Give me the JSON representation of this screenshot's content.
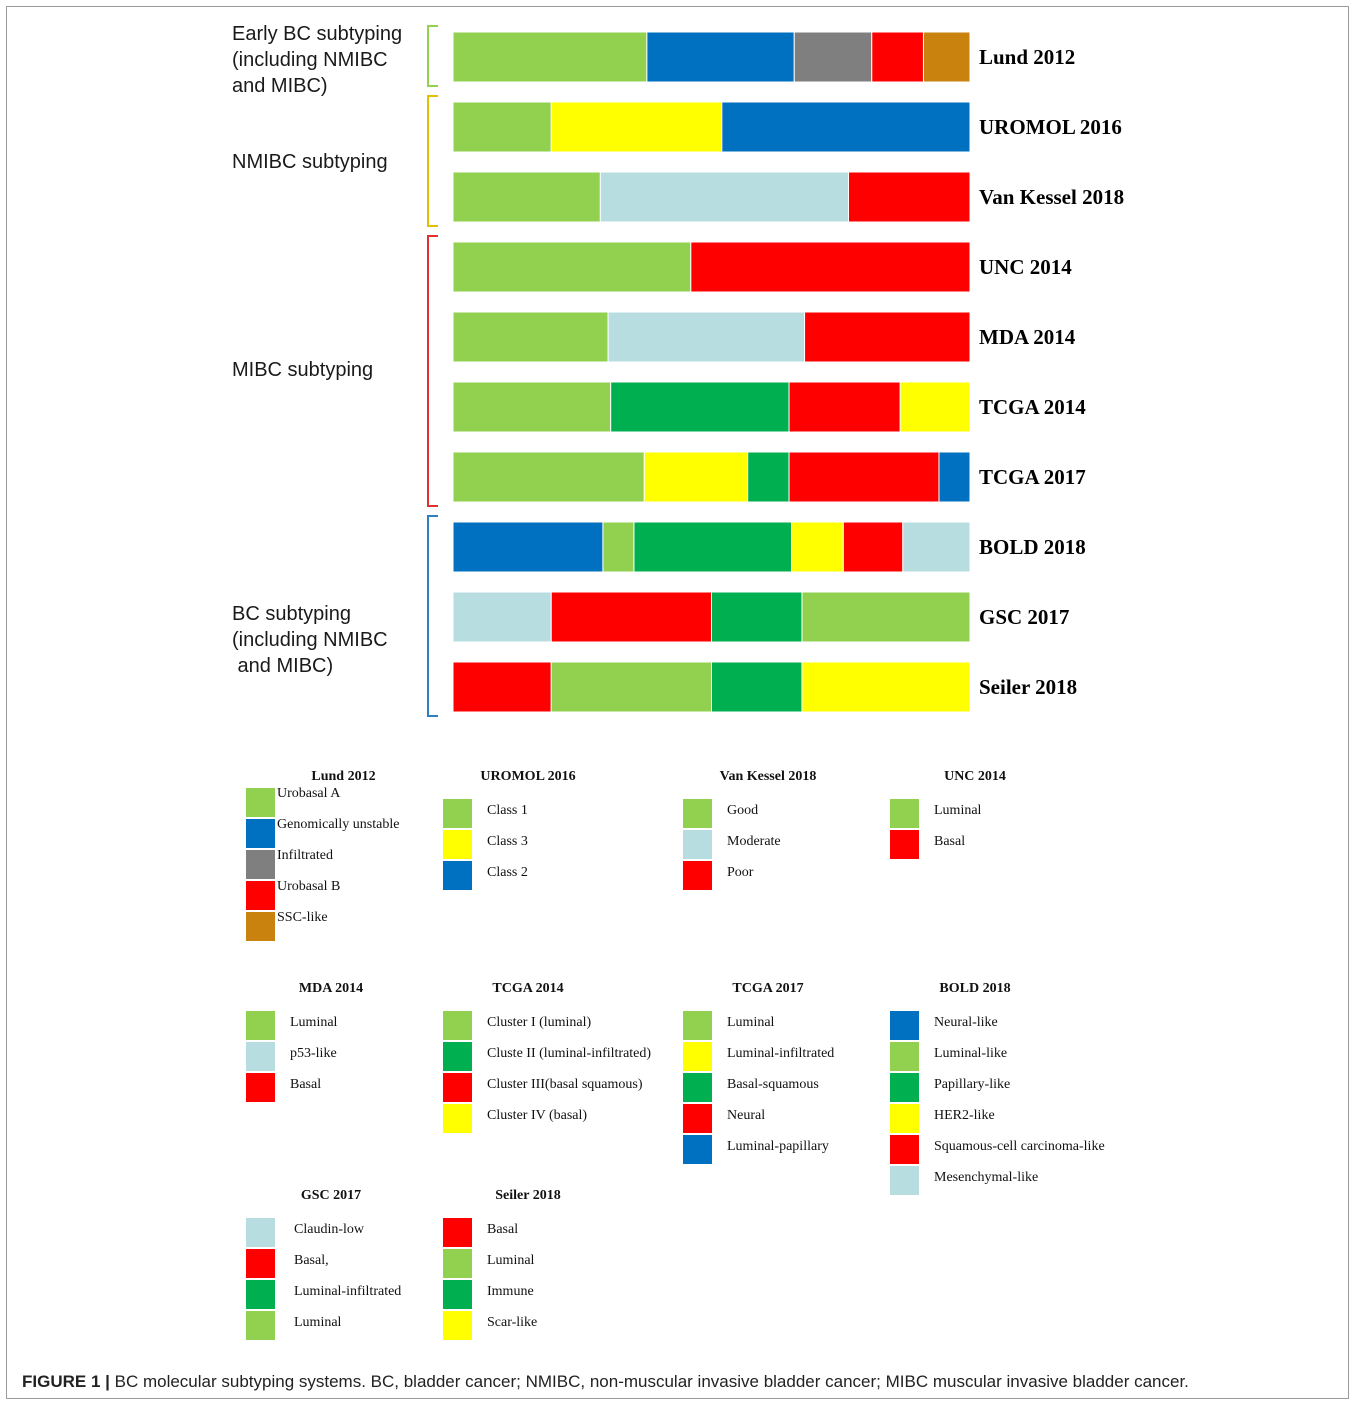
{
  "colors": {
    "light_green": "#92d050",
    "blue": "#0070c0",
    "gray": "#7f7f7f",
    "red": "#ff0000",
    "orange": "#c9820e",
    "yellow": "#ffff00",
    "light_blue": "#b7dde0",
    "dark_green": "#00b050",
    "green_bracket": "#92d050",
    "yellow_bracket": "#e0c000",
    "red_bracket": "#e03030",
    "blue_bracket": "#2e7fc0"
  },
  "groups": [
    {
      "label": "Early BC subtyping\n(including NMIBC\nand MIBC)",
      "bracket_color": "green_bracket"
    },
    {
      "label": "NMIBC subtyping",
      "bracket_color": "yellow_bracket"
    },
    {
      "label": "MIBC subtyping",
      "bracket_color": "red_bracket"
    },
    {
      "label": "BC subtyping\n(including NMIBC\n and MIBC)",
      "bracket_color": "blue_bracket"
    }
  ],
  "chart_data": {
    "type": "bar",
    "orientation": "horizontal-stacked",
    "unit": "proportion",
    "bars": [
      {
        "name": "Lund 2012",
        "group": 0,
        "segments": [
          {
            "subtype": "Urobasal A",
            "color": "light_green",
            "value": 0.375
          },
          {
            "subtype": "Genomically unstable",
            "color": "blue",
            "value": 0.285
          },
          {
            "subtype": "Infiltrated",
            "color": "gray",
            "value": 0.15
          },
          {
            "subtype": "Urobasal B",
            "color": "red",
            "value": 0.1
          },
          {
            "subtype": "SSC-like",
            "color": "orange",
            "value": 0.09
          }
        ]
      },
      {
        "name": "UROMOL 2016",
        "group": 1,
        "segments": [
          {
            "subtype": "Class 1",
            "color": "light_green",
            "value": 0.19
          },
          {
            "subtype": "Class 3",
            "color": "yellow",
            "value": 0.33
          },
          {
            "subtype": "Class 2",
            "color": "blue",
            "value": 0.48
          }
        ]
      },
      {
        "name": "Van Kessel 2018",
        "group": 1,
        "segments": [
          {
            "subtype": "Good",
            "color": "light_green",
            "value": 0.285
          },
          {
            "subtype": "Moderate",
            "color": "light_blue",
            "value": 0.48
          },
          {
            "subtype": "Poor",
            "color": "red",
            "value": 0.235
          }
        ]
      },
      {
        "name": "UNC 2014",
        "group": 2,
        "segments": [
          {
            "subtype": "Luminal",
            "color": "light_green",
            "value": 0.46
          },
          {
            "subtype": "Basal",
            "color": "red",
            "value": 0.54
          }
        ]
      },
      {
        "name": "MDA 2014",
        "group": 2,
        "segments": [
          {
            "subtype": "Luminal",
            "color": "light_green",
            "value": 0.3
          },
          {
            "subtype": "p53-like",
            "color": "light_blue",
            "value": 0.38
          },
          {
            "subtype": "Basal",
            "color": "red",
            "value": 0.32
          }
        ]
      },
      {
        "name": "TCGA 2014",
        "group": 2,
        "segments": [
          {
            "subtype": "Cluster I (luminal)",
            "color": "light_green",
            "value": 0.305
          },
          {
            "subtype": "Cluste II (luminal-infiltrated)",
            "color": "dark_green",
            "value": 0.345
          },
          {
            "subtype": "Cluster III(basal squamous)",
            "color": "red",
            "value": 0.215
          },
          {
            "subtype": "Cluster IV (basal)",
            "color": "yellow",
            "value": 0.135
          }
        ]
      },
      {
        "name": "TCGA 2017",
        "group": 2,
        "segments": [
          {
            "subtype": "Luminal",
            "color": "light_green",
            "value": 0.37
          },
          {
            "subtype": "Luminal-infiltrated",
            "color": "yellow",
            "value": 0.2
          },
          {
            "subtype": "Basal-squamous",
            "color": "dark_green",
            "value": 0.08
          },
          {
            "subtype": "Neural",
            "color": "red",
            "value": 0.29
          },
          {
            "subtype": "Luminal-papillary",
            "color": "blue",
            "value": 0.06
          }
        ]
      },
      {
        "name": "BOLD 2018",
        "group": 3,
        "segments": [
          {
            "subtype": "Neural-like",
            "color": "blue",
            "value": 0.29
          },
          {
            "subtype": "Luminal-like",
            "color": "light_green",
            "value": 0.06
          },
          {
            "subtype": "Papillary-like",
            "color": "dark_green",
            "value": 0.305
          },
          {
            "subtype": "HER2-like",
            "color": "yellow",
            "value": 0.1
          },
          {
            "subtype": "Squamous-cell carcinoma-like",
            "color": "red",
            "value": 0.115
          },
          {
            "subtype": "Mesenchymal-like",
            "color": "light_blue",
            "value": 0.13
          }
        ]
      },
      {
        "name": "GSC 2017",
        "group": 3,
        "segments": [
          {
            "subtype": "Claudin-low",
            "color": "light_blue",
            "value": 0.19
          },
          {
            "subtype": "Basal,",
            "color": "red",
            "value": 0.31
          },
          {
            "subtype": "Luminal-infiltrated",
            "color": "dark_green",
            "value": 0.175
          },
          {
            "subtype": "Luminal",
            "color": "light_green",
            "value": 0.325
          }
        ]
      },
      {
        "name": "Seiler 2018",
        "group": 3,
        "segments": [
          {
            "subtype": "Basal",
            "color": "red",
            "value": 0.19
          },
          {
            "subtype": "Luminal",
            "color": "light_green",
            "value": 0.31
          },
          {
            "subtype": "Immune",
            "color": "dark_green",
            "value": 0.175
          },
          {
            "subtype": "Scar-like",
            "color": "yellow",
            "value": 0.325
          }
        ]
      }
    ]
  },
  "legends": [
    {
      "title": "Lund 2012",
      "items": [
        {
          "label": "Urobasal A",
          "color": "light_green"
        },
        {
          "label": "Genomically unstable",
          "color": "blue"
        },
        {
          "label": "Infiltrated",
          "color": "gray"
        },
        {
          "label": "Urobasal B",
          "color": "red"
        },
        {
          "label": "SSC-like",
          "color": "orange"
        }
      ]
    },
    {
      "title": "UROMOL 2016",
      "items": [
        {
          "label": "Class 1",
          "color": "light_green"
        },
        {
          "label": "Class 3",
          "color": "yellow"
        },
        {
          "label": "Class 2",
          "color": "blue"
        }
      ]
    },
    {
      "title": "Van Kessel 2018",
      "items": [
        {
          "label": "Good",
          "color": "light_green"
        },
        {
          "label": "Moderate",
          "color": "light_blue"
        },
        {
          "label": "Poor",
          "color": "red"
        }
      ]
    },
    {
      "title": "UNC 2014",
      "items": [
        {
          "label": "Luminal",
          "color": "light_green"
        },
        {
          "label": "Basal",
          "color": "red"
        }
      ]
    },
    {
      "title": "MDA 2014",
      "items": [
        {
          "label": "Luminal",
          "color": "light_green"
        },
        {
          "label": "p53-like",
          "color": "light_blue"
        },
        {
          "label": "Basal",
          "color": "red"
        }
      ]
    },
    {
      "title": "TCGA 2014",
      "items": [
        {
          "label": "Cluster I (luminal)",
          "color": "light_green"
        },
        {
          "label": "Cluste II (luminal-infiltrated)",
          "color": "dark_green"
        },
        {
          "label": "Cluster III(basal squamous)",
          "color": "red"
        },
        {
          "label": "Cluster IV (basal)",
          "color": "yellow"
        }
      ]
    },
    {
      "title": "TCGA 2017",
      "items": [
        {
          "label": "Luminal",
          "color": "light_green"
        },
        {
          "label": "Luminal-infiltrated",
          "color": "yellow"
        },
        {
          "label": "Basal-squamous",
          "color": "dark_green"
        },
        {
          "label": "Neural",
          "color": "red"
        },
        {
          "label": "Luminal-papillary",
          "color": "blue"
        }
      ]
    },
    {
      "title": "BOLD 2018",
      "items": [
        {
          "label": "Neural-like",
          "color": "blue"
        },
        {
          "label": "Luminal-like",
          "color": "light_green"
        },
        {
          "label": "Papillary-like",
          "color": "dark_green"
        },
        {
          "label": "HER2-like",
          "color": "yellow"
        },
        {
          "label": "Squamous-cell carcinoma-like",
          "color": "red"
        },
        {
          "label": "Mesenchymal-like",
          "color": "light_blue"
        }
      ]
    },
    {
      "title": "GSC 2017",
      "items": [
        {
          "label": "Claudin-low",
          "color": "light_blue"
        },
        {
          "label": "Basal,",
          "color": "red"
        },
        {
          "label": "Luminal-infiltrated",
          "color": "dark_green"
        },
        {
          "label": "Luminal",
          "color": "light_green"
        }
      ]
    },
    {
      "title": "Seiler 2018",
      "items": [
        {
          "label": "Basal",
          "color": "red"
        },
        {
          "label": "Luminal",
          "color": "light_green"
        },
        {
          "label": "Immune",
          "color": "dark_green"
        },
        {
          "label": "Scar-like",
          "color": "yellow"
        }
      ]
    }
  ],
  "caption": {
    "prefix": "FIGURE 1 |",
    "text": " BC molecular subtyping systems. BC, bladder cancer; NMIBC, non-muscular invasive bladder cancer; MIBC muscular invasive bladder cancer."
  }
}
